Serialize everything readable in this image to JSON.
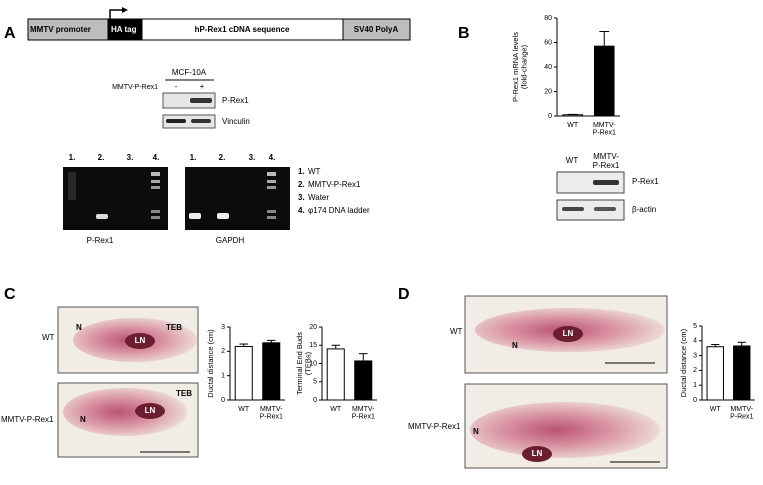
{
  "panel_letters": [
    "A",
    "B",
    "C",
    "D"
  ],
  "construct": [
    "MMTV promoter",
    "HA tag",
    "hP-Rex1 cDNA sequence",
    "SV40 PolyA"
  ],
  "western_a": {
    "cell_line": "MCF-10A",
    "row_label": "MMTV-P-Rex1",
    "lanes": [
      "-",
      "+"
    ],
    "bands": [
      "P-Rex1",
      "Vinculin"
    ]
  },
  "gel": {
    "lanes": [
      "1.",
      "2.",
      "3.",
      "4."
    ],
    "panels": [
      "P-Rex1",
      "GAPDH"
    ],
    "legend": [
      {
        "num": "1.",
        "text": "WT"
      },
      {
        "num": "2.",
        "text": "MMTV-P-Rex1"
      },
      {
        "num": "3.",
        "text": "Water"
      },
      {
        "num": "4.",
        "text": "φ174 DNA ladder"
      }
    ]
  },
  "western_b": {
    "lanes": [
      "WT",
      "MMTV-\nP-Rex1"
    ],
    "bands": [
      "P-Rex1",
      "β-actin"
    ]
  },
  "whole_mounts": {
    "rows": [
      "WT",
      "MMTV-P-Rex1"
    ],
    "marks": [
      "N",
      "LN",
      "TEB"
    ]
  },
  "chart_data": [
    {
      "type": "bar",
      "ylabel": "P-Rex1 mRNA levels\n(fold-change)",
      "categories": [
        "WT",
        "MMTV-\nP-Rex1"
      ],
      "values": [
        1,
        57
      ],
      "errors": [
        0.3,
        12
      ],
      "colors": [
        "#ffffff",
        "#000000"
      ],
      "ylim": [
        0,
        80
      ],
      "yticks": [
        0,
        20,
        40,
        60,
        80
      ]
    },
    {
      "type": "bar",
      "ylabel": "Ductal distance (cm)",
      "categories": [
        "WT",
        "MMTV-\nP-Rex1"
      ],
      "values": [
        2.2,
        2.35
      ],
      "errors": [
        0.1,
        0.1
      ],
      "colors": [
        "#ffffff",
        "#000000"
      ],
      "ylim": [
        0,
        3
      ],
      "yticks": [
        0,
        1,
        2,
        3
      ]
    },
    {
      "type": "bar",
      "ylabel": "Terminal End Buds\n(TEBs)",
      "categories": [
        "WT",
        "MMTV-\nP-Rex1"
      ],
      "values": [
        14,
        10.7
      ],
      "errors": [
        1,
        2
      ],
      "colors": [
        "#ffffff",
        "#000000"
      ],
      "ylim": [
        0,
        20
      ],
      "yticks": [
        0,
        5,
        10,
        15,
        20
      ]
    },
    {
      "type": "bar",
      "ylabel": "Ductal distance (cm)",
      "categories": [
        "WT",
        "MMTV-\nP-Rex1"
      ],
      "values": [
        3.6,
        3.65
      ],
      "errors": [
        0.15,
        0.25
      ],
      "colors": [
        "#ffffff",
        "#000000"
      ],
      "ylim": [
        0,
        5
      ],
      "yticks": [
        0,
        1,
        2,
        3,
        4,
        5
      ]
    }
  ]
}
